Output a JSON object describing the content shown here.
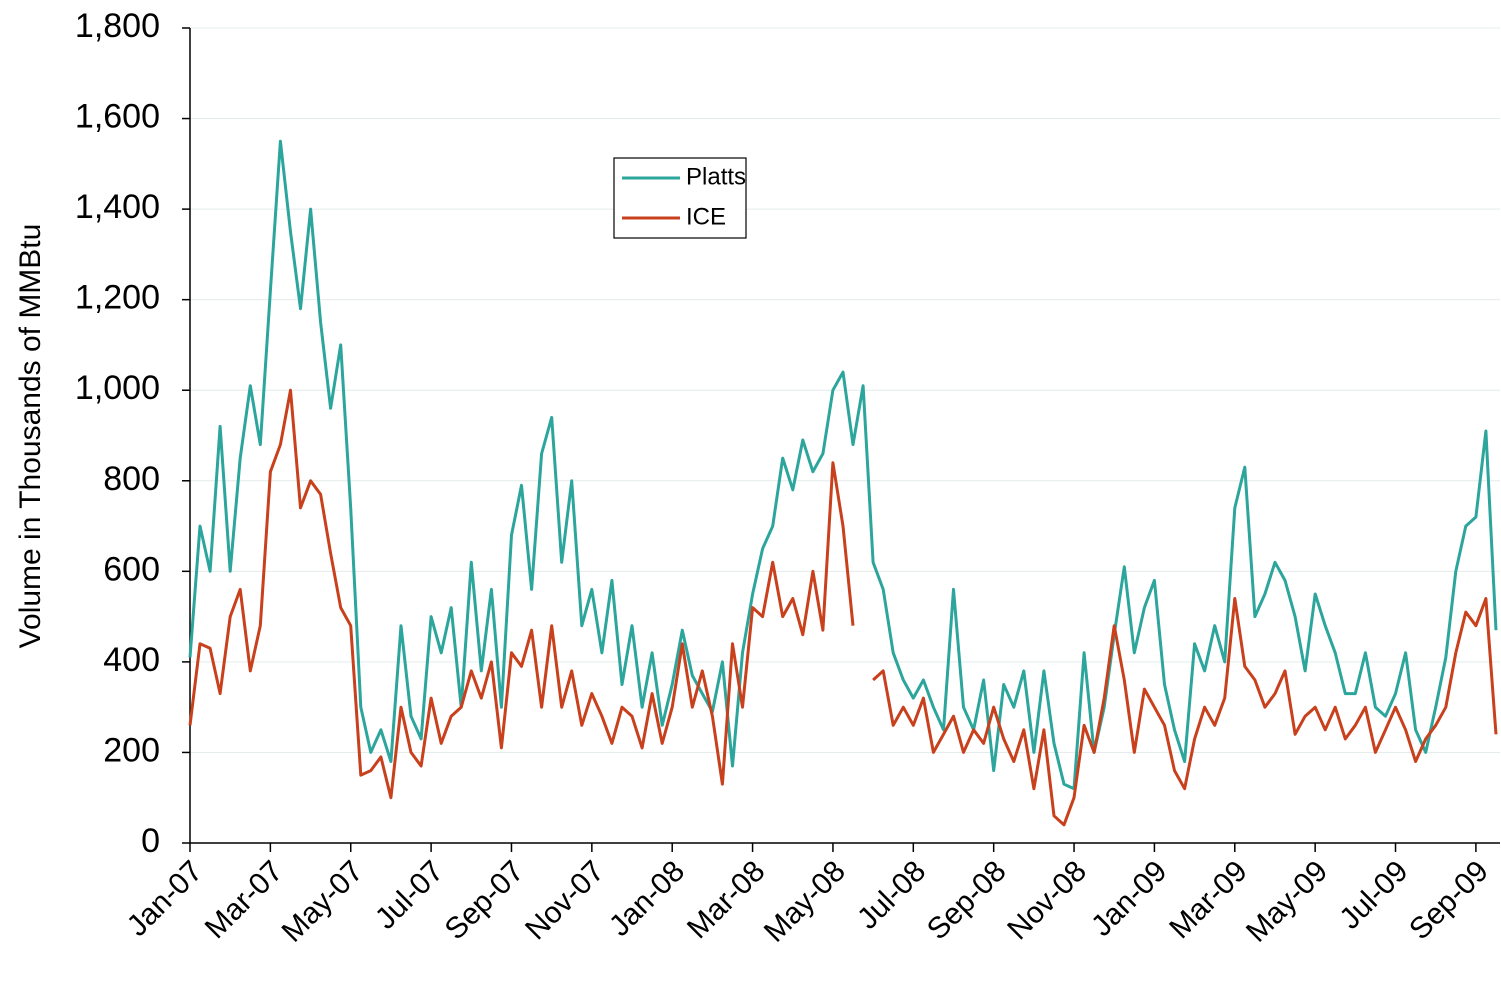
{
  "chart_data": {
    "type": "line",
    "y_label": "Volume in Thousands of MMBtu",
    "x": [
      0,
      0.25,
      0.5,
      0.75,
      1,
      1.25,
      1.5,
      1.75,
      2,
      2.25,
      2.5,
      2.75,
      3,
      3.25,
      3.5,
      3.75,
      4,
      4.25,
      4.5,
      4.75,
      5,
      5.25,
      5.5,
      5.75,
      6,
      6.25,
      6.5,
      6.75,
      7,
      7.25,
      7.5,
      7.75,
      8,
      8.25,
      8.5,
      8.75,
      9,
      9.25,
      9.5,
      9.75,
      10,
      10.25,
      10.5,
      10.75,
      11,
      11.25,
      11.5,
      11.75,
      12,
      12.25,
      12.5,
      12.75,
      13,
      13.25,
      13.5,
      13.75,
      14,
      14.25,
      14.5,
      14.75,
      15,
      15.25,
      15.5,
      15.75,
      16,
      16.25,
      16.5,
      16.75,
      17,
      17.25,
      17.5,
      17.75,
      18,
      18.25,
      18.5,
      18.75,
      19,
      19.25,
      19.5,
      19.75,
      20,
      20.25,
      20.5,
      20.75,
      21,
      21.25,
      21.5,
      21.75,
      22,
      22.25,
      22.5,
      22.75,
      23,
      23.25,
      23.5,
      23.75,
      24,
      24.25,
      24.5,
      24.75,
      25,
      25.25,
      25.5,
      25.75,
      26,
      26.25,
      26.5,
      26.75,
      27,
      27.25,
      27.5,
      27.75,
      28,
      28.25,
      28.5,
      28.75,
      29,
      29.25,
      29.5,
      29.75,
      30,
      30.25,
      30.5,
      30.75,
      31,
      31.25,
      31.5,
      31.75,
      32,
      32.25,
      32.5
    ],
    "xlim": [
      0,
      32.6
    ],
    "xticks": [
      {
        "value": 0,
        "label": "Jan-07"
      },
      {
        "value": 2,
        "label": "Mar-07"
      },
      {
        "value": 4,
        "label": "May-07"
      },
      {
        "value": 6,
        "label": "Jul-07"
      },
      {
        "value": 8,
        "label": "Sep-07"
      },
      {
        "value": 10,
        "label": "Nov-07"
      },
      {
        "value": 12,
        "label": "Jan-08"
      },
      {
        "value": 14,
        "label": "Mar-08"
      },
      {
        "value": 16,
        "label": "May-08"
      },
      {
        "value": 18,
        "label": "Jul-08"
      },
      {
        "value": 20,
        "label": "Sep-08"
      },
      {
        "value": 22,
        "label": "Nov-08"
      },
      {
        "value": 24,
        "label": "Jan-09"
      },
      {
        "value": 26,
        "label": "Mar-09"
      },
      {
        "value": 28,
        "label": "May-09"
      },
      {
        "value": 30,
        "label": "Jul-09"
      },
      {
        "value": 32,
        "label": "Sep-09"
      }
    ],
    "ylim": [
      0,
      1800
    ],
    "yticks": [
      0,
      200,
      400,
      600,
      800,
      {
        "value": 1000,
        "label": "1,000"
      },
      {
        "value": 1200,
        "label": "1,200"
      },
      {
        "value": 1400,
        "label": "1,400"
      },
      {
        "value": 1600,
        "label": "1,600"
      },
      {
        "value": 1800,
        "label": "1,800"
      }
    ],
    "grid": true,
    "legend": "upper-center",
    "series": [
      {
        "name": "Platts",
        "color": "#2ca59c",
        "values": [
          410,
          700,
          600,
          920,
          600,
          850,
          1010,
          880,
          1220,
          1550,
          1350,
          1180,
          1400,
          1150,
          960,
          1100,
          740,
          300,
          200,
          250,
          180,
          480,
          280,
          230,
          500,
          420,
          520,
          300,
          620,
          380,
          560,
          300,
          680,
          790,
          560,
          860,
          940,
          620,
          800,
          480,
          560,
          420,
          580,
          350,
          480,
          300,
          420,
          260,
          350,
          470,
          370,
          330,
          290,
          400,
          170,
          420,
          550,
          650,
          700,
          850,
          780,
          890,
          820,
          860,
          1000,
          1040,
          880,
          1010,
          620,
          560,
          420,
          360,
          320,
          360,
          300,
          250,
          560,
          300,
          250,
          360,
          160,
          350,
          300,
          380,
          200,
          380,
          220,
          130,
          120,
          420,
          200,
          300,
          460,
          610,
          420,
          520,
          580,
          350,
          250,
          180,
          440,
          380,
          480,
          400,
          740,
          830,
          500,
          550,
          620,
          580,
          500,
          380,
          550,
          480,
          420,
          330,
          330,
          420,
          300,
          280,
          330,
          420,
          250,
          200,
          300,
          410,
          600,
          700,
          720,
          910,
          470
        ]
      },
      {
        "name": "ICE",
        "color": "#c8401c",
        "values": [
          260,
          440,
          430,
          330,
          500,
          560,
          380,
          480,
          820,
          880,
          1000,
          740,
          800,
          770,
          640,
          520,
          480,
          150,
          160,
          190,
          100,
          300,
          200,
          170,
          320,
          220,
          280,
          300,
          380,
          320,
          400,
          210,
          420,
          390,
          470,
          300,
          480,
          300,
          380,
          260,
          330,
          280,
          220,
          300,
          280,
          210,
          330,
          220,
          300,
          440,
          300,
          380,
          280,
          130,
          440,
          300,
          520,
          500,
          620,
          500,
          540,
          460,
          600,
          470,
          840,
          700,
          480,
          null,
          360,
          380,
          260,
          300,
          260,
          320,
          200,
          240,
          280,
          200,
          250,
          220,
          300,
          230,
          180,
          250,
          120,
          250,
          60,
          40,
          100,
          260,
          200,
          320,
          480,
          360,
          200,
          340,
          300,
          260,
          160,
          120,
          230,
          300,
          260,
          320,
          540,
          390,
          360,
          300,
          330,
          380,
          240,
          280,
          300,
          250,
          300,
          230,
          260,
          300,
          200,
          250,
          300,
          250,
          180,
          230,
          260,
          300,
          420,
          510,
          480,
          540,
          240
        ]
      }
    ]
  }
}
